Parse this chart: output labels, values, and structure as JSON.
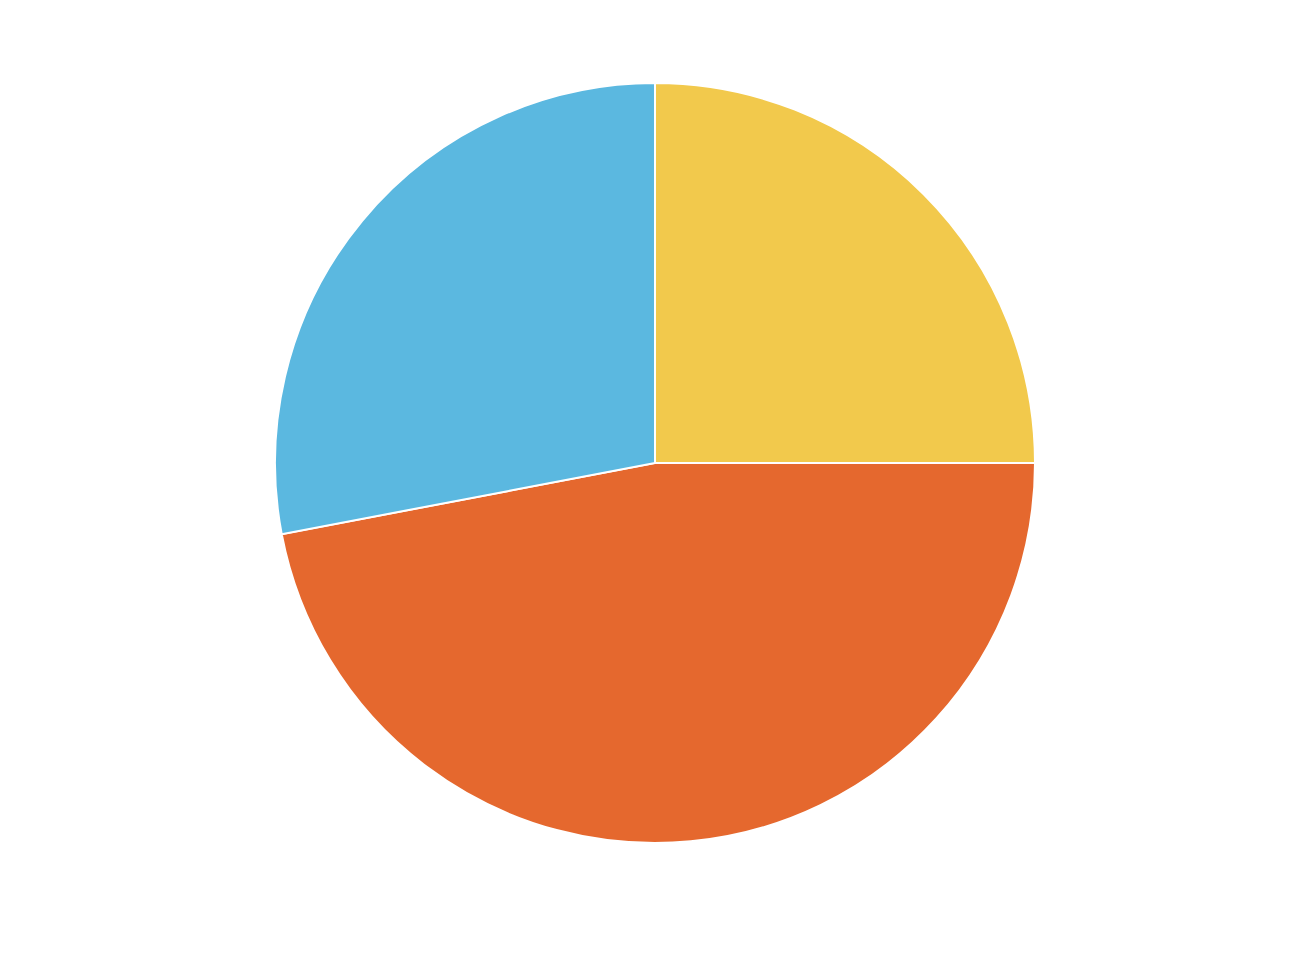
{
  "chart_data": {
    "type": "pie",
    "categories": [
      null,
      null,
      null
    ],
    "values": [
      25,
      47,
      28
    ],
    "colors": [
      "#f2c94c",
      "#e5682e",
      "#5bb8e0"
    ]
  }
}
